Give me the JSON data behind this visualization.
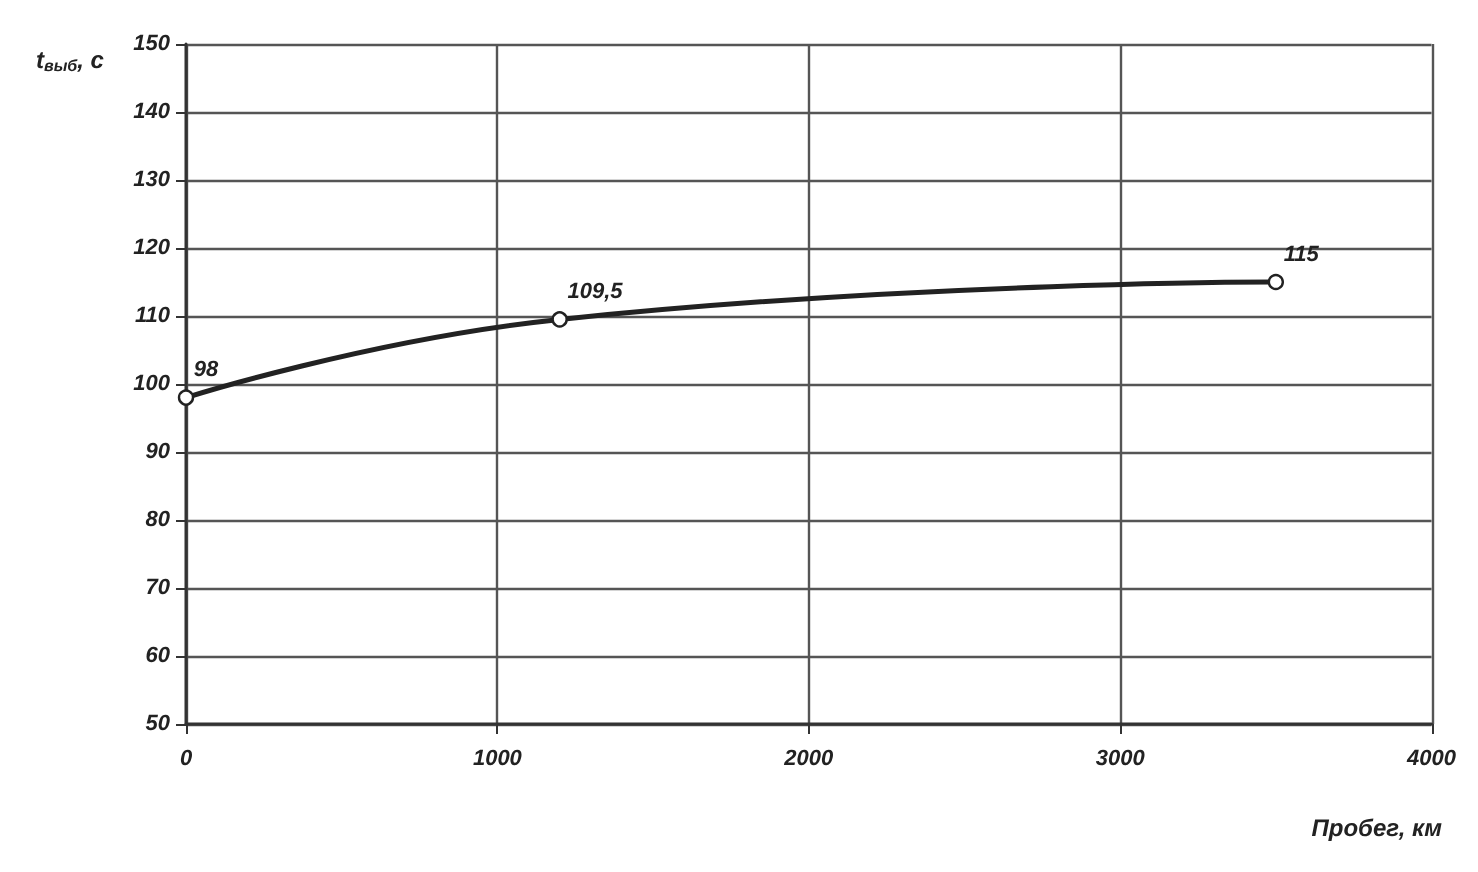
{
  "chart_data": {
    "type": "line",
    "xlabel": "Пробег, км",
    "ylabel": "t$_{выб}$, с",
    "x": [
      0,
      1200,
      3500
    ],
    "series": [
      {
        "color": "#222222",
        "values": [
          98,
          109.5,
          115
        ],
        "value_labels": [
          "98",
          "109,5",
          "115"
        ]
      }
    ],
    "xlim": [
      0,
      4000
    ],
    "xticks": [
      0,
      1000,
      2000,
      3000,
      4000
    ],
    "ylim": [
      50,
      150
    ],
    "yticks": [
      50,
      60,
      70,
      80,
      90,
      100,
      110,
      120,
      130,
      140,
      150
    ],
    "grid": true,
    "marker": "circle",
    "line_style": "solid"
  }
}
